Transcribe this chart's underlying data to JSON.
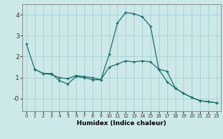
{
  "xlabel": "Humidex (Indice chaleur)",
  "background_color": "#cce8e8",
  "line_color": "#1a6b6b",
  "grid_color": "#aad4d4",
  "x_values": [
    0,
    1,
    2,
    3,
    4,
    5,
    6,
    7,
    8,
    9,
    10,
    11,
    12,
    13,
    14,
    15,
    16,
    17,
    18,
    19,
    20,
    21,
    22,
    23
  ],
  "y_line1": [
    2.6,
    1.4,
    1.2,
    1.2,
    0.85,
    0.7,
    1.05,
    1.0,
    0.9,
    0.9,
    2.1,
    3.6,
    4.1,
    4.05,
    3.9,
    3.45,
    1.4,
    1.3,
    0.5,
    0.25,
    0.05,
    -0.1,
    -0.15,
    -0.2
  ],
  "y_line2": [
    null,
    1.4,
    1.2,
    1.15,
    1.0,
    0.95,
    1.1,
    1.05,
    1.0,
    0.9,
    1.5,
    1.65,
    1.8,
    1.75,
    1.8,
    1.75,
    1.4,
    0.8,
    0.5,
    0.25,
    0.05,
    -0.1,
    -0.15,
    -0.2
  ],
  "ylim": [
    -0.6,
    4.5
  ],
  "xlim": [
    -0.5,
    23.5
  ],
  "xticks": [
    0,
    1,
    2,
    3,
    4,
    5,
    6,
    7,
    8,
    9,
    10,
    11,
    12,
    13,
    14,
    15,
    16,
    17,
    18,
    19,
    20,
    21,
    22,
    23
  ],
  "yticks": [
    0,
    1,
    2,
    3,
    4
  ],
  "ytick_labels": [
    "-0",
    "1",
    "2",
    "3",
    "4"
  ]
}
